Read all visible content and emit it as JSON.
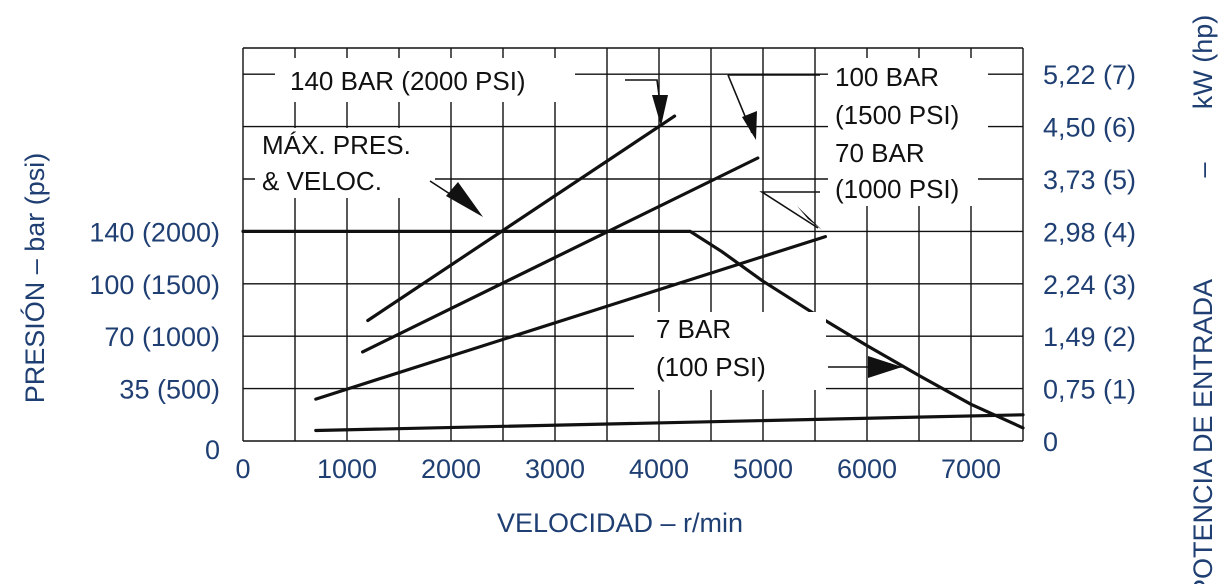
{
  "chart_data": {
    "type": "line",
    "x_ticks": [
      "0",
      "1000",
      "2000",
      "3000",
      "4000",
      "5000",
      "6000",
      "7000"
    ],
    "x_label": "VELOCIDAD   – r/min",
    "y_left_ticks": [
      "0",
      "35 (500)",
      "70 (1000)",
      "100 (1500)",
      "140 (2000)"
    ],
    "y_left_label": "PRESIÓN   –   bar (psi)",
    "y_right_ticks": [
      "0",
      "0,75 (1)",
      "1,49 (2)",
      "2,24 (3)",
      "2,98 (4)",
      "3,73 (5)",
      "4,50 (6)",
      "5,22 (7)"
    ],
    "y_right_label_main": "POTENCIA DE ENTRADA",
    "y_right_label_dash": "–",
    "y_right_label_unit": "kW (hp)",
    "xlim": [
      0,
      7500
    ],
    "ylim_right_hp": [
      0,
      7.5
    ],
    "grid": true,
    "annotations": {
      "max_line1": "MÁX. PRES.",
      "max_line2": "& VELOC.",
      "bar140": "140  BAR (2000 PSI)",
      "bar100_line1": "100  BAR",
      "bar100_line2": "(1500 PSI)",
      "bar70_line1": "70 BAR",
      "bar70_line2": "(1000 PSI)",
      "bar7_line1": "7 BAR",
      "bar7_line2": "(100 PSI)"
    },
    "series": [
      {
        "name": "140  BAR (2000 PSI)",
        "x": [
          1200,
          4150
        ],
        "y": [
          2.3,
          6.2
        ]
      },
      {
        "name": "100  BAR (1500 PSI)",
        "x": [
          1150,
          4950
        ],
        "y": [
          1.7,
          5.4
        ]
      },
      {
        "name": "70 BAR (1000 PSI)",
        "x": [
          700,
          5600
        ],
        "y": [
          0.8,
          3.9
        ]
      },
      {
        "name": "7 BAR (100 PSI)",
        "x": [
          700,
          7500
        ],
        "y": [
          0.2,
          0.5
        ]
      },
      {
        "name": "MÁX. PRES. & VELOC.",
        "x": [
          0,
          4300,
          4600,
          5000,
          5500,
          6000,
          6500,
          7000,
          7500
        ],
        "y": [
          4.0,
          4.0,
          3.62,
          3.05,
          2.42,
          1.82,
          1.25,
          0.7,
          0.25
        ]
      }
    ]
  },
  "colors": {
    "tick_text": "#1f3f73",
    "axis_title": "#1f3f73",
    "lines": "#111111"
  }
}
